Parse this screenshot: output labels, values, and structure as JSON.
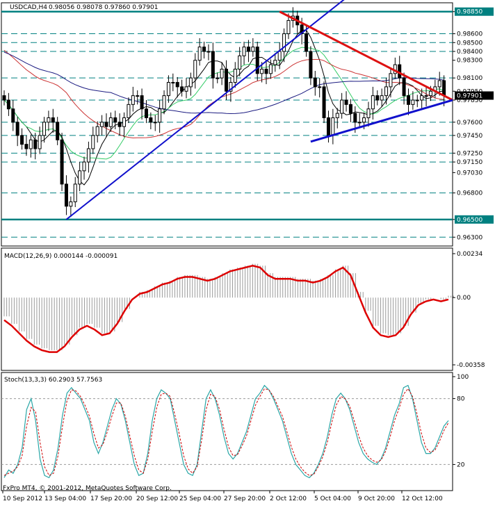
{
  "header": {
    "symbol": "USDCAD,H4",
    "ohlc": "0.98056 0.98078 0.97860 0.97901"
  },
  "footer": {
    "copyright": "FxPro MT4, © 2001-2012, MetaQuotes Software Corp."
  },
  "colors": {
    "background": "#ffffff",
    "candles": "#000000",
    "ma_fast": "#000000",
    "ma_green": "#33cc66",
    "ma_red": "#cc3333",
    "ma_navy": "#1a1a80",
    "support_trendline": "#1010cc",
    "resistance_trendline": "#dd1111",
    "level_lines": "#008080",
    "macd_signal": "#dd0000",
    "macd_histogram": "#999999",
    "stoch_main": "#2aa7a7",
    "stoch_signal": "#cc0000"
  },
  "chart_data": [
    {
      "type": "candlestick",
      "panel": "price",
      "instrument": "USDCAD",
      "timeframe": "H4",
      "ylim": [
        0.962,
        0.9895
      ],
      "y_ticks": [
        "0.98850",
        "0.98600",
        "0.98500",
        "0.98400",
        "0.98300",
        "0.98100",
        "0.97950",
        "0.97850",
        "0.97600",
        "0.97450",
        "0.97250",
        "0.97150",
        "0.97030",
        "0.96800",
        "0.96500",
        "0.96300"
      ],
      "current_price": "0.97901",
      "horizontal_levels": [
        0.9885,
        0.986,
        0.985,
        0.984,
        0.981,
        0.9785,
        0.976,
        0.9745,
        0.9725,
        0.9715,
        0.968,
        0.965,
        0.963
      ],
      "highlighted_levels": [
        0.9885,
        0.965
      ],
      "close_series": [
        0.9785,
        0.9775,
        0.976,
        0.9745,
        0.9735,
        0.973,
        0.974,
        0.973,
        0.9745,
        0.976,
        0.9765,
        0.976,
        0.974,
        0.969,
        0.9665,
        0.967,
        0.969,
        0.9705,
        0.9715,
        0.973,
        0.9745,
        0.9755,
        0.976,
        0.9755,
        0.9765,
        0.976,
        0.9755,
        0.9765,
        0.978,
        0.979,
        0.979,
        0.9775,
        0.9765,
        0.976,
        0.976,
        0.9775,
        0.979,
        0.9805,
        0.9805,
        0.98,
        0.9795,
        0.98,
        0.981,
        0.983,
        0.9845,
        0.984,
        0.984,
        0.981,
        0.981,
        0.982,
        0.9795,
        0.9805,
        0.982,
        0.9835,
        0.9845,
        0.984,
        0.9845,
        0.9815,
        0.982,
        0.9815,
        0.9825,
        0.983,
        0.984,
        0.986,
        0.9875,
        0.988,
        0.987,
        0.986,
        0.984,
        0.981,
        0.98,
        0.98,
        0.9765,
        0.9745,
        0.9765,
        0.977,
        0.9785,
        0.978,
        0.977,
        0.976,
        0.976,
        0.9765,
        0.9775,
        0.979,
        0.9785,
        0.979,
        0.98,
        0.9815,
        0.9825,
        0.981,
        0.979,
        0.978,
        0.9785,
        0.9785,
        0.979,
        0.979,
        0.9795,
        0.98,
        0.9807,
        0.979
      ],
      "indicators": [
        {
          "kind": "moving_average",
          "color": "black"
        },
        {
          "kind": "moving_average",
          "color": "green"
        },
        {
          "kind": "moving_average",
          "color": "red"
        },
        {
          "kind": "moving_average",
          "color": "navy"
        }
      ],
      "trendlines": [
        {
          "kind": "support",
          "color": "blue",
          "from": [
            "13 Sep 04:00",
            0.965
          ],
          "to": [
            "2 Oct 20:00",
            0.9885
          ]
        },
        {
          "kind": "resistance",
          "color": "red",
          "from": [
            "2 Oct 12:00",
            0.9885
          ],
          "to": [
            "16 Oct",
            0.9785
          ]
        },
        {
          "kind": "triangle_support",
          "color": "blue",
          "from": [
            "5 Oct 04:00",
            0.9738
          ],
          "to": [
            "16 Oct",
            0.9785
          ]
        }
      ]
    },
    {
      "type": "area",
      "panel": "macd",
      "label": "MACD(12,26,9) 0.000144 -0.000091",
      "ylim": [
        -0.00358,
        0.00234
      ],
      "y_ticks": [
        "0.00234",
        "0.00",
        "-0.00358"
      ],
      "signal_series": [
        -0.0012,
        -0.0015,
        -0.0019,
        -0.0023,
        -0.0026,
        -0.0028,
        -0.0029,
        -0.0029,
        -0.0026,
        -0.0021,
        -0.0017,
        -0.0015,
        -0.0017,
        -0.002,
        -0.0019,
        -0.0014,
        -0.0007,
        -0.0001,
        0.0002,
        0.0003,
        0.0005,
        0.0007,
        0.0008,
        0.001,
        0.0011,
        0.0011,
        0.001,
        0.0009,
        0.001,
        0.0012,
        0.0014,
        0.0015,
        0.0016,
        0.0017,
        0.0016,
        0.0012,
        0.001,
        0.001,
        0.001,
        0.0009,
        0.0009,
        0.0008,
        0.0009,
        0.0011,
        0.0014,
        0.0016,
        0.0012,
        0.0002,
        -0.0008,
        -0.0016,
        -0.002,
        -0.0021,
        -0.002,
        -0.0016,
        -0.0009,
        -0.0004,
        -0.0002,
        -0.0001,
        -0.0002,
        -0.0001
      ],
      "histogram_series": [
        -0.001,
        -0.0014,
        -0.0018,
        -0.0022,
        -0.0025,
        -0.0027,
        -0.0028,
        -0.0028,
        -0.0025,
        -0.002,
        -0.0016,
        -0.0014,
        -0.0016,
        -0.0019,
        -0.0018,
        -0.0013,
        -0.0006,
        0.0,
        0.0003,
        0.0004,
        0.0006,
        0.0008,
        0.0009,
        0.0011,
        0.0012,
        0.0012,
        0.0011,
        0.001,
        0.0011,
        0.0013,
        0.0015,
        0.0016,
        0.0017,
        0.0018,
        0.0017,
        0.0013,
        0.0011,
        0.0011,
        0.0011,
        0.001,
        0.001,
        0.0009,
        0.001,
        0.0012,
        0.0015,
        0.0017,
        0.0013,
        0.0003,
        -0.0007,
        -0.0015,
        -0.0019,
        -0.002,
        -0.0019,
        -0.0015,
        -0.0008,
        -0.0003,
        -0.0001,
        0.0,
        -0.0001,
        0.0001
      ]
    },
    {
      "type": "line",
      "panel": "stochastic",
      "label": "Stoch(13,3,3) 60.2903 57.7563",
      "ylim": [
        0,
        100
      ],
      "y_ticks": [
        "100",
        "80",
        "20"
      ],
      "series": [
        {
          "values": [
            8,
            15,
            12,
            20,
            35,
            70,
            80,
            60,
            25,
            10,
            8,
            15,
            35,
            65,
            85,
            90,
            85,
            80,
            70,
            60,
            40,
            30,
            40,
            55,
            70,
            80,
            75,
            60,
            40,
            20,
            10,
            12,
            30,
            60,
            80,
            88,
            85,
            80,
            60,
            40,
            20,
            12,
            10,
            20,
            50,
            80,
            88,
            80,
            65,
            45,
            30,
            25,
            30,
            40,
            50,
            65,
            80,
            85,
            92,
            88,
            80,
            70,
            60,
            45,
            30,
            20,
            15,
            10,
            8,
            12,
            20,
            30,
            45,
            65,
            80,
            85,
            80,
            70,
            55,
            40,
            30,
            25,
            22,
            20,
            25,
            35,
            50,
            65,
            75,
            90,
            92,
            80,
            60,
            40,
            30,
            30,
            35,
            45,
            55,
            60
          ]
        },
        {
          "values": [
            10,
            12,
            14,
            18,
            28,
            55,
            72,
            68,
            40,
            18,
            10,
            12,
            28,
            55,
            78,
            88,
            87,
            82,
            74,
            64,
            48,
            35,
            38,
            50,
            64,
            76,
            76,
            64,
            46,
            28,
            15,
            12,
            25,
            50,
            72,
            84,
            85,
            82,
            66,
            48,
            28,
            16,
            12,
            18,
            42,
            70,
            84,
            82,
            70,
            52,
            36,
            28,
            29,
            37,
            46,
            60,
            74,
            82,
            89,
            88,
            82,
            73,
            64,
            50,
            36,
            25,
            18,
            13,
            10,
            11,
            18,
            27,
            40,
            58,
            74,
            82,
            80,
            73,
            60,
            46,
            35,
            28,
            24,
            22,
            24,
            32,
            45,
            60,
            71,
            84,
            89,
            82,
            66,
            48,
            35,
            31,
            33,
            41,
            51,
            58
          ]
        }
      ]
    }
  ],
  "x_axis": {
    "labels": [
      "10 Sep 2012",
      "13 Sep 04:00",
      "17 Sep 20:00",
      "20 Sep 12:00",
      "25 Sep 04:00",
      "27 Sep 20:00",
      "2 Oct 12:00",
      "5 Oct 04:00",
      "9 Oct 20:00",
      "12 Oct 12:00"
    ]
  }
}
